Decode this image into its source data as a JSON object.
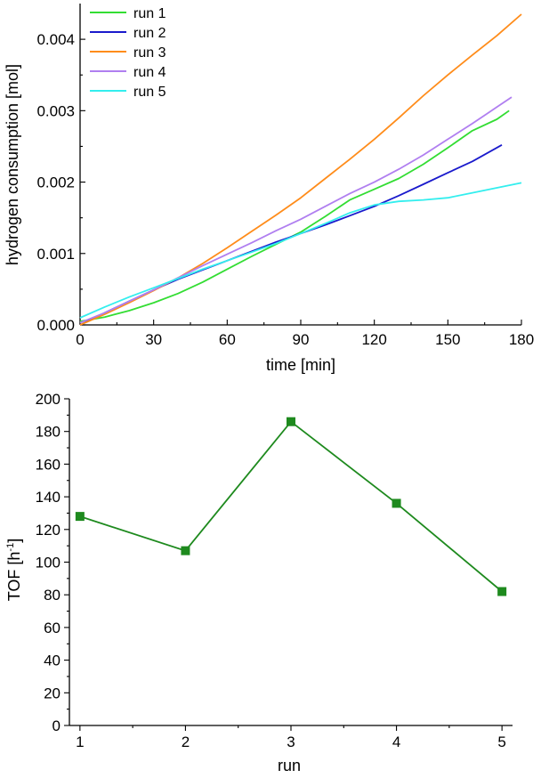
{
  "chart_data": [
    {
      "type": "line",
      "title": "",
      "xlabel": "time [min]",
      "ylabel": "hydrogen consumption [mol]",
      "xlim": [
        0,
        180
      ],
      "ylim": [
        0,
        0.0045
      ],
      "xticks": [
        "0",
        "30",
        "60",
        "90",
        "120",
        "150",
        "180"
      ],
      "yticks": [
        "0.000",
        "0.001",
        "0.002",
        "0.003",
        "0.004"
      ],
      "legend_position": "top-left",
      "series": [
        {
          "name": "run 1",
          "color": "#33dd33",
          "x": [
            0,
            10,
            20,
            30,
            40,
            50,
            60,
            70,
            80,
            90,
            100,
            110,
            120,
            130,
            140,
            150,
            160,
            170,
            175
          ],
          "y": [
            5e-05,
            0.00011,
            0.0002,
            0.00031,
            0.00044,
            0.0006,
            0.00078,
            0.00096,
            0.00113,
            0.0013,
            0.00152,
            0.00175,
            0.0019,
            0.00205,
            0.00225,
            0.00248,
            0.00272,
            0.00288,
            0.003
          ]
        },
        {
          "name": "run 2",
          "color": "#1a1acc",
          "x": [
            0,
            10,
            20,
            30,
            40,
            50,
            60,
            70,
            80,
            90,
            100,
            110,
            120,
            130,
            140,
            150,
            160,
            172
          ],
          "y": [
            0.0,
            0.00017,
            0.00033,
            0.00049,
            0.00064,
            0.00077,
            0.0009,
            0.00103,
            0.00116,
            0.00128,
            0.0014,
            0.00153,
            0.00166,
            0.00181,
            0.00197,
            0.00213,
            0.00229,
            0.00252
          ]
        },
        {
          "name": "run 3",
          "color": "#ff8c1a",
          "x": [
            0,
            10,
            20,
            30,
            40,
            50,
            60,
            70,
            80,
            90,
            100,
            110,
            120,
            130,
            140,
            150,
            160,
            170,
            180
          ],
          "y": [
            0.0,
            0.00015,
            0.00031,
            0.00048,
            0.00066,
            0.00086,
            0.00108,
            0.00131,
            0.00154,
            0.00178,
            0.00205,
            0.00232,
            0.0026,
            0.0029,
            0.00321,
            0.0035,
            0.00378,
            0.00405,
            0.00435
          ]
        },
        {
          "name": "run 4",
          "color": "#b07ff0",
          "x": [
            0,
            10,
            20,
            30,
            40,
            50,
            60,
            70,
            80,
            90,
            100,
            110,
            120,
            130,
            140,
            150,
            160,
            170,
            176
          ],
          "y": [
            3e-05,
            0.00017,
            0.00033,
            0.00049,
            0.00066,
            0.00083,
            0.00099,
            0.00115,
            0.00132,
            0.00148,
            0.00166,
            0.00184,
            0.002,
            0.00218,
            0.00238,
            0.0026,
            0.00282,
            0.00305,
            0.00319
          ]
        },
        {
          "name": "run 5",
          "color": "#33eeee",
          "x": [
            0,
            10,
            20,
            30,
            40,
            50,
            60,
            70,
            80,
            90,
            100,
            110,
            120,
            130,
            140,
            150,
            160,
            170,
            180
          ],
          "y": [
            0.0001,
            0.00025,
            0.00039,
            0.00052,
            0.00065,
            0.00078,
            0.0009,
            0.00102,
            0.00114,
            0.00128,
            0.00142,
            0.00157,
            0.00168,
            0.00173,
            0.00175,
            0.00178,
            0.00185,
            0.00192,
            0.00199
          ]
        }
      ]
    },
    {
      "type": "line",
      "title": "",
      "xlabel": "run",
      "ylabel": "TOF [h",
      "ylabel_superscript": "-1",
      "ylabel_suffix": "]",
      "xlim": [
        0.9,
        5.1
      ],
      "ylim": [
        0,
        200
      ],
      "xticks": [
        "1",
        "2",
        "3",
        "4",
        "5"
      ],
      "yticks": [
        "0",
        "20",
        "40",
        "60",
        "80",
        "100",
        "120",
        "140",
        "160",
        "180",
        "200"
      ],
      "marker": "square",
      "series": [
        {
          "name": "TOF",
          "color": "#1e8a1e",
          "x": [
            1,
            2,
            3,
            4,
            5
          ],
          "y": [
            128,
            107,
            186,
            136,
            82
          ]
        }
      ]
    }
  ]
}
